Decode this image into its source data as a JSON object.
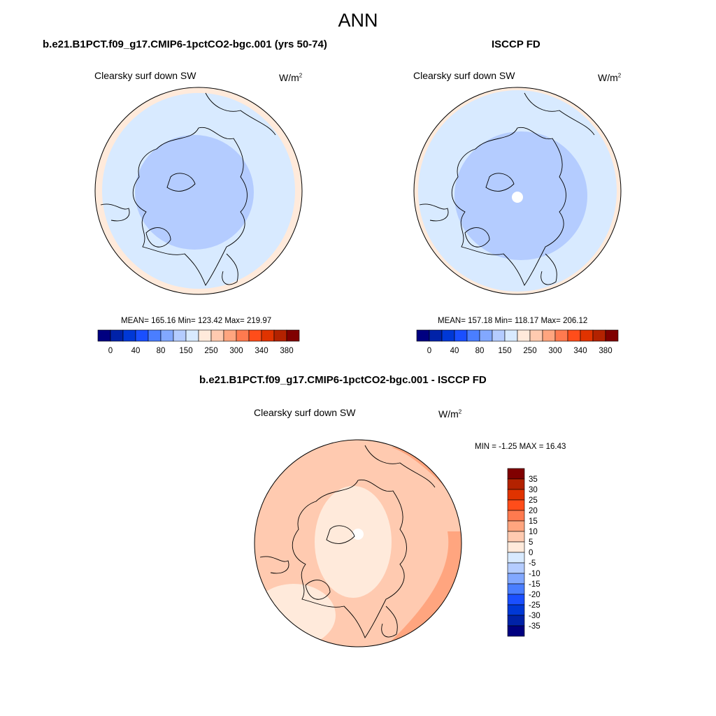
{
  "title": "ANN",
  "panels": [
    {
      "heading": "b.e21.B1PCT.f09_g17.CMIP6-1pctCO2-bgc.001 (yrs 50-74)",
      "variable": "Clearsky surf down SW",
      "units_base": "W/m",
      "units_exp": "2",
      "stats": "MEAN= 165.16  Min= 123.42  Max= 219.97"
    },
    {
      "heading": "ISCCP FD",
      "variable": "Clearsky surf down SW",
      "units_base": "W/m",
      "units_exp": "2",
      "stats": "MEAN= 157.18  Min= 118.17  Max= 206.12"
    },
    {
      "heading": "b.e21.B1PCT.f09_g17.CMIP6-1pctCO2-bgc.001 - ISCCP FD",
      "variable": "Clearsky surf down SW",
      "units_base": "W/m",
      "units_exp": "2",
      "stats": "MIN =  -1.25 MAX =  16.43"
    }
  ],
  "chart_data": {
    "type": "heatmap",
    "projection": "north polar stereographic",
    "colorbar_abs": {
      "labels": [
        "0",
        "40",
        "80",
        "150",
        "250",
        "300",
        "340",
        "380"
      ],
      "colors": [
        "#000080",
        "#0022a8",
        "#0038d6",
        "#1a4fff",
        "#4a7eff",
        "#82a8ff",
        "#b4ccff",
        "#d8eaff",
        "#ffeadb",
        "#ffcab0",
        "#ffa57f",
        "#ff7a4f",
        "#ff4d1a",
        "#e03300",
        "#b32200",
        "#800000"
      ]
    },
    "colorbar_diff": {
      "labels": [
        "35",
        "30",
        "25",
        "20",
        "15",
        "10",
        "5",
        "0",
        "-5",
        "-10",
        "-15",
        "-20",
        "-25",
        "-30",
        "-35"
      ],
      "colors": [
        "#800000",
        "#b32200",
        "#e03300",
        "#ff4d1a",
        "#ff7a4f",
        "#ffa57f",
        "#ffcab0",
        "#ffeadb",
        "#d8eaff",
        "#b4ccff",
        "#82a8ff",
        "#4a7eff",
        "#1a4fff",
        "#0038d6",
        "#0022a8",
        "#000080"
      ]
    }
  }
}
